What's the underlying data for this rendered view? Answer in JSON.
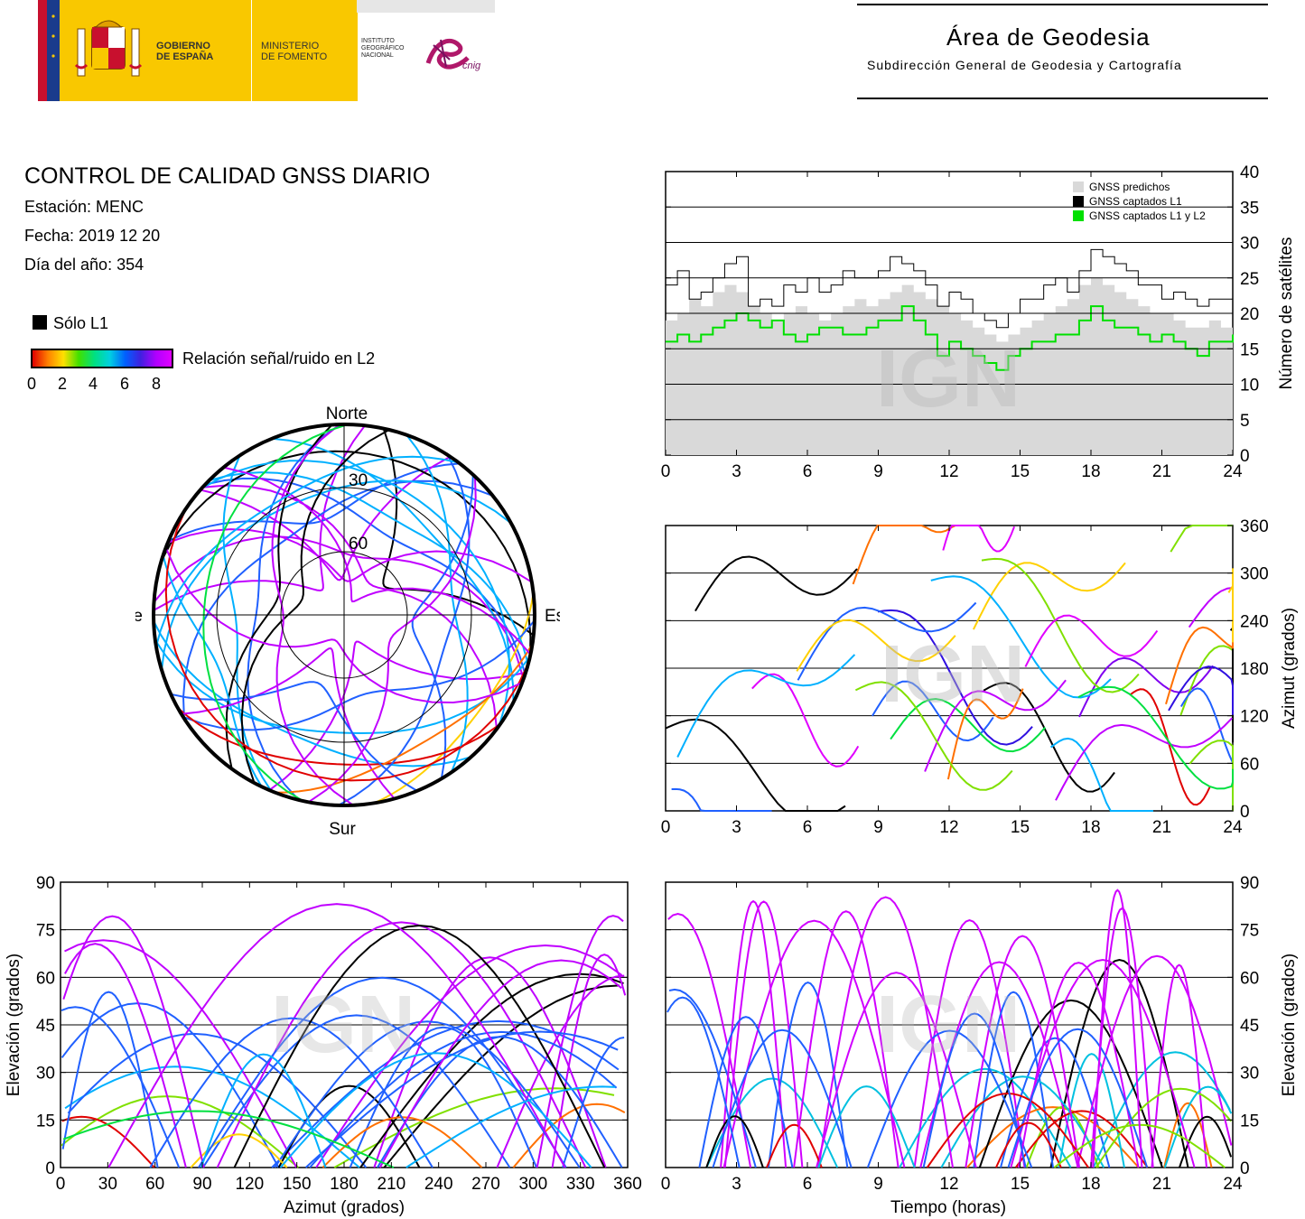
{
  "header": {
    "gobierno": "GOBIERNO\nDE ESPAÑA",
    "ministerio": "MINISTERIO\nDE FOMENTO",
    "instituto": "INSTITUTO\nGEOGRÁFICO\nNACIONAL",
    "cnig": "cnig",
    "area_title": "Área de Geodesia",
    "area_subtitle": "Subdirección General de Geodesia y Cartografía"
  },
  "info": {
    "title": "CONTROL DE CALIDAD GNSS DIARIO",
    "station": "Estación: MENC",
    "date": "Fecha: 2019 12 20",
    "doy": "Día del año: 354"
  },
  "legend": {
    "only_l1": "Sólo L1",
    "snr_label": "Relación señal/ruido en L2",
    "snr_ticks": [
      "0",
      "2",
      "4",
      "6",
      "8"
    ]
  },
  "watermark": "IGN",
  "polar": {
    "north": "Norte",
    "south": "Sur",
    "west": "Oeste",
    "east": "Este",
    "ring_labels": [
      "30",
      "60"
    ]
  },
  "chart_data": [
    {
      "type": "area",
      "id": "satellites",
      "ylabel": "Número de satélites",
      "ylim": [
        0,
        40
      ],
      "yticks": [
        0,
        5,
        10,
        15,
        20,
        25,
        30,
        35,
        40
      ],
      "xlim": [
        0,
        24
      ],
      "xticks": [
        0,
        3,
        6,
        9,
        12,
        15,
        18,
        21,
        24
      ],
      "legend": [
        "GNSS predichos",
        "GNSS captados L1",
        "GNSS captados L1 y L2"
      ],
      "legend_position": "top-right",
      "series": [
        {
          "name": "GNSS predichos",
          "color": "#d9d9d9",
          "x": [
            0,
            0.5,
            1,
            1.5,
            2,
            2.5,
            3,
            3.5,
            4,
            4.5,
            5,
            5.5,
            6,
            6.5,
            7,
            7.5,
            8,
            8.5,
            9,
            9.5,
            10,
            10.5,
            11,
            11.5,
            12,
            12.5,
            13,
            13.5,
            14,
            14.5,
            15,
            15.5,
            16,
            16.5,
            17,
            17.5,
            18,
            18.5,
            19,
            19.5,
            20,
            20.5,
            21,
            21.5,
            22,
            22.5,
            23,
            23.5,
            24
          ],
          "values": [
            19,
            20,
            22,
            21,
            23,
            24,
            23,
            21,
            20,
            19,
            20,
            21,
            20,
            19,
            20,
            21,
            22,
            21,
            22,
            23,
            24,
            23,
            22,
            21,
            20,
            19,
            18,
            17,
            16,
            17,
            18,
            19,
            20,
            21,
            22,
            24,
            25,
            24,
            23,
            22,
            21,
            20,
            20,
            19,
            18,
            18,
            19,
            18,
            18
          ]
        },
        {
          "name": "GNSS captados L1",
          "color": "#000000",
          "x": [
            0,
            0.5,
            1,
            1.5,
            2,
            2.5,
            3,
            3.5,
            4,
            4.5,
            5,
            5.5,
            6,
            6.5,
            7,
            7.5,
            8,
            8.5,
            9,
            9.5,
            10,
            10.5,
            11,
            11.5,
            12,
            12.5,
            13,
            13.5,
            14,
            14.5,
            15,
            15.5,
            16,
            16.5,
            17,
            17.5,
            18,
            18.5,
            19,
            19.5,
            20,
            20.5,
            21,
            21.5,
            22,
            22.5,
            23,
            23.5,
            24
          ],
          "values": [
            24,
            26,
            22,
            23,
            25,
            27,
            28,
            21,
            22,
            21,
            24,
            23,
            25,
            23,
            24,
            26,
            25,
            25,
            26,
            28,
            27,
            26,
            24,
            21,
            23,
            22,
            20,
            19,
            18,
            20,
            22,
            22,
            24,
            25,
            23,
            26,
            29,
            28,
            27,
            26,
            24,
            24,
            22,
            23,
            22,
            21,
            22,
            22,
            22
          ]
        },
        {
          "name": "GNSS captados L1 y L2",
          "color": "#00e000",
          "x": [
            0,
            0.5,
            1,
            1.5,
            2,
            2.5,
            3,
            3.5,
            4,
            4.5,
            5,
            5.5,
            6,
            6.5,
            7,
            7.5,
            8,
            8.5,
            9,
            9.5,
            10,
            10.5,
            11,
            11.5,
            12,
            12.5,
            13,
            13.5,
            14,
            14.5,
            15,
            15.5,
            16,
            16.5,
            17,
            17.5,
            18,
            18.5,
            19,
            19.5,
            20,
            20.5,
            21,
            21.5,
            22,
            22.5,
            23,
            23.5,
            24
          ],
          "values": [
            16,
            17,
            16,
            17,
            18,
            19,
            20,
            19,
            18,
            19,
            17,
            16,
            17,
            18,
            18,
            17,
            17,
            18,
            19,
            19,
            21,
            19,
            17,
            14,
            16,
            15,
            14,
            13,
            12,
            14,
            15,
            16,
            16,
            17,
            17,
            19,
            21,
            19,
            18,
            18,
            17,
            16,
            17,
            16,
            15,
            14,
            16,
            16,
            17
          ]
        }
      ]
    },
    {
      "type": "scatter",
      "id": "azimuth_time",
      "ylabel": "Azimut (grados)",
      "ylim": [
        0,
        360
      ],
      "yticks": [
        0,
        60,
        120,
        180,
        240,
        300,
        360
      ],
      "xlim": [
        0,
        24
      ],
      "xticks": [
        0,
        3,
        6,
        9,
        12,
        15,
        18,
        21,
        24
      ]
    },
    {
      "type": "scatter",
      "id": "elevation_azimuth",
      "xlabel": "Azimut (grados)",
      "ylabel": "Elevación (grados)",
      "xlim": [
        0,
        360
      ],
      "ylim": [
        0,
        90
      ],
      "xticks": [
        0,
        30,
        60,
        90,
        120,
        150,
        180,
        210,
        240,
        270,
        300,
        330,
        360
      ],
      "yticks": [
        0,
        15,
        30,
        45,
        60,
        75,
        90
      ]
    },
    {
      "type": "scatter",
      "id": "elevation_time",
      "xlabel": "Tiempo (horas)",
      "ylabel": "Elevación (grados)",
      "xlim": [
        0,
        24
      ],
      "ylim": [
        0,
        90
      ],
      "xticks": [
        0,
        3,
        6,
        9,
        12,
        15,
        18,
        21,
        24
      ],
      "yticks": [
        0,
        15,
        30,
        45,
        60,
        75,
        90
      ]
    }
  ]
}
